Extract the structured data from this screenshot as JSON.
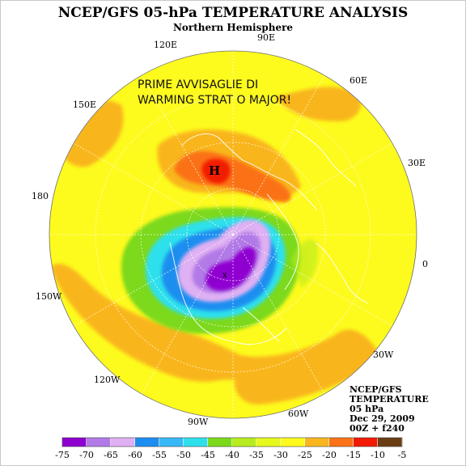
{
  "title": "NCEP/GFS 05-hPa TEMPERATURE ANALYSIS",
  "subtitle": "Northern Hemisphere",
  "longitude_labels": {
    "e90": "90E",
    "e120": "120E",
    "e60": "60E",
    "e150": "150E",
    "e30": "30E",
    "d180": "180",
    "d0": "0",
    "w150": "150W",
    "w30": "30W",
    "w120": "120W",
    "w60": "60W",
    "w90": "90W"
  },
  "annotation": {
    "line1": "PRIME AVVISAGLIE DI",
    "line2": "WARMING STRAT O MAJOR!"
  },
  "high_marker": "H",
  "info_block": {
    "line1": "NCEP/GFS",
    "line2": "TEMPERATURE",
    "line3": "05 hPa",
    "line4": "Dec 29, 2009",
    "line5": "00Z + f240"
  },
  "legend": {
    "labels": [
      "-75",
      "-70",
      "-65",
      "-60",
      "-55",
      "-50",
      "-45",
      "-40",
      "-35",
      "-30",
      "-25",
      "-20",
      "-15",
      "-10",
      "-5"
    ],
    "colors": [
      "#8f00d0",
      "#b27ae6",
      "#dfb0f3",
      "#1c8ef0",
      "#38b8f8",
      "#2ee0ec",
      "#7bd91a",
      "#b7ec1e",
      "#e6f81c",
      "#fdfa1e",
      "#f9b61f",
      "#fb7218",
      "#f21a06",
      "#6a3d14",
      "#7f7f7f"
    ]
  },
  "colors": {
    "ocean_yellow": "#fdfa1e",
    "warm_orange": "#f9b61f",
    "hot_red": "#f21a06",
    "vortex_purple": "#8f00d0"
  }
}
